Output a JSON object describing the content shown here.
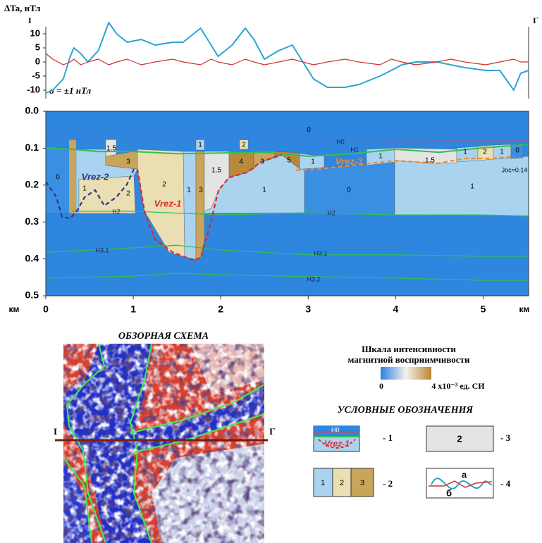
{
  "chart_data": [
    {
      "type": "line",
      "y_label": "ΔTa, нТл",
      "profile_start": "I",
      "profile_end": "I`",
      "annotation": "σ = ±1 нТл",
      "x": [
        0,
        0.08,
        0.2,
        0.28,
        0.32,
        0.4,
        0.48,
        0.6,
        0.72,
        0.81,
        0.93,
        1.09,
        1.25,
        1.45,
        1.57,
        1.77,
        1.89,
        1.97,
        2.13,
        2.28,
        2.38,
        2.5,
        2.66,
        2.82,
        2.94,
        3.06,
        3.22,
        3.42,
        3.58,
        3.82,
        3.95,
        4.07,
        4.23,
        4.47,
        4.63,
        4.79,
        5.03,
        5.19,
        5.35,
        5.43,
        5.52
      ],
      "xlim": [
        0,
        5.52
      ],
      "ylim": [
        -13,
        12.5
      ],
      "yticks": [
        -10,
        -5,
        0,
        5,
        10
      ],
      "series": [
        {
          "color": "#2aa5cf",
          "values": [
            -11,
            -10,
            -6,
            2,
            5,
            3,
            0,
            4,
            14,
            10,
            7,
            8,
            6,
            7,
            7,
            12,
            6,
            2,
            6,
            12,
            8,
            1,
            4,
            6,
            0,
            -6,
            -9,
            -9,
            -8,
            -5,
            -3,
            -1,
            0,
            0,
            -1,
            -2,
            -3,
            -3,
            -10,
            -4,
            -3
          ]
        },
        {
          "color": "#d03030",
          "values": [
            3,
            1,
            -1,
            0,
            1,
            -1,
            0,
            1,
            -1,
            0,
            1,
            -1,
            0,
            1,
            0,
            -1,
            1,
            0,
            -1,
            1,
            0,
            -1,
            0,
            1,
            0,
            -1,
            0,
            1,
            0,
            -1,
            1,
            0,
            -1,
            0,
            1,
            0,
            -1,
            0,
            1,
            0,
            0
          ]
        }
      ]
    },
    {
      "type": "section",
      "x_unit": "км",
      "xlim": [
        0,
        5.52
      ],
      "ylim": [
        0,
        0.5
      ],
      "y_inverted": true,
      "xticks": [
        0,
        1,
        2,
        3,
        4,
        5
      ],
      "yticks": [
        {
          "value": 0,
          "label": "0.0"
        },
        0.1,
        0.2,
        0.3,
        0.4,
        0.5
      ],
      "background": "#2e86df",
      "class_colors": {
        "0": "#3b8fe2",
        "1": "#a9d3ef",
        "1.5": "#e4e4e2",
        "2": "#eadfb2",
        "3": "#c9a55c",
        "4": "#b98a3a",
        "5": "#b6873a"
      },
      "blocks": [
        0,
        0,
        1.5,
        3,
        2,
        1,
        2,
        1,
        3,
        1,
        1.5,
        2,
        4,
        3,
        5,
        1,
        1,
        0,
        1,
        1.5,
        1,
        1,
        2,
        1,
        0
      ],
      "horizons": [
        {
          "name": "H0",
          "color": "#d04868",
          "x": [
            0,
            5.52
          ],
          "depth": [
            0.076,
            0.078
          ]
        },
        {
          "name": "H1",
          "color": "#2fbf5a",
          "x": [
            0,
            0.3,
            0.6,
            1.0,
            1.5,
            2.0,
            2.5,
            3.0,
            3.5,
            4.0,
            4.5,
            5.0,
            5.52
          ],
          "depth": [
            0.099,
            0.103,
            0.109,
            0.109,
            0.115,
            0.113,
            0.111,
            0.122,
            0.115,
            0.103,
            0.111,
            0.099,
            0.09
          ]
        },
        {
          "name": "H2",
          "color": "#2fbf5a",
          "x": [
            0.3,
            1,
            2,
            3,
            4,
            5,
            5.52
          ],
          "depth": [
            0.271,
            0.271,
            0.281,
            0.275,
            0.281,
            0.281,
            0.284
          ]
        },
        {
          "name": "H3.1",
          "color": "#2fbf5a",
          "x": [
            0,
            1,
            1.5,
            2,
            3,
            4,
            5,
            5.52
          ],
          "depth": [
            0.382,
            0.37,
            0.363,
            0.376,
            0.389,
            0.389,
            0.393,
            0.393
          ]
        },
        {
          "name": "H3.2",
          "color": "#2fbf5a",
          "x": [
            0,
            1,
            1.5,
            2,
            3,
            4,
            5,
            5.52
          ],
          "depth": [
            0.452,
            0.447,
            0.439,
            0.443,
            0.448,
            0.452,
            0.458,
            0.458
          ]
        }
      ],
      "vrez": [
        {
          "name": "Vrez-2",
          "color": "#2e3590"
        },
        {
          "name": "Vrez-1",
          "color": "#e02828"
        },
        {
          "name": "Vrez-3",
          "color": "#f08a30"
        }
      ],
      "note": "Jос=0.14"
    }
  ],
  "overview": {
    "title": "ОБЗОРНАЯ СХЕМА",
    "profile_start": "I",
    "profile_end": "I`"
  },
  "scale": {
    "title": [
      "Шкала интенсивности",
      "магнитной восприимчивости"
    ],
    "min": "0",
    "max": "4 x10⁻³ ед. СИ"
  },
  "legend": {
    "title": "УСЛОВНЫЕ ОБОЗНАЧЕНИЯ",
    "items": [
      {
        "texts": [
          "H0",
          "Vrez-1"
        ],
        "label": "- 1"
      },
      {
        "texts": [
          "1",
          "2",
          "3"
        ],
        "label": "- 2"
      },
      {
        "texts": [
          "2"
        ],
        "label": "- 3"
      },
      {
        "texts": [
          "а",
          "б"
        ],
        "label": "- 4"
      }
    ]
  }
}
